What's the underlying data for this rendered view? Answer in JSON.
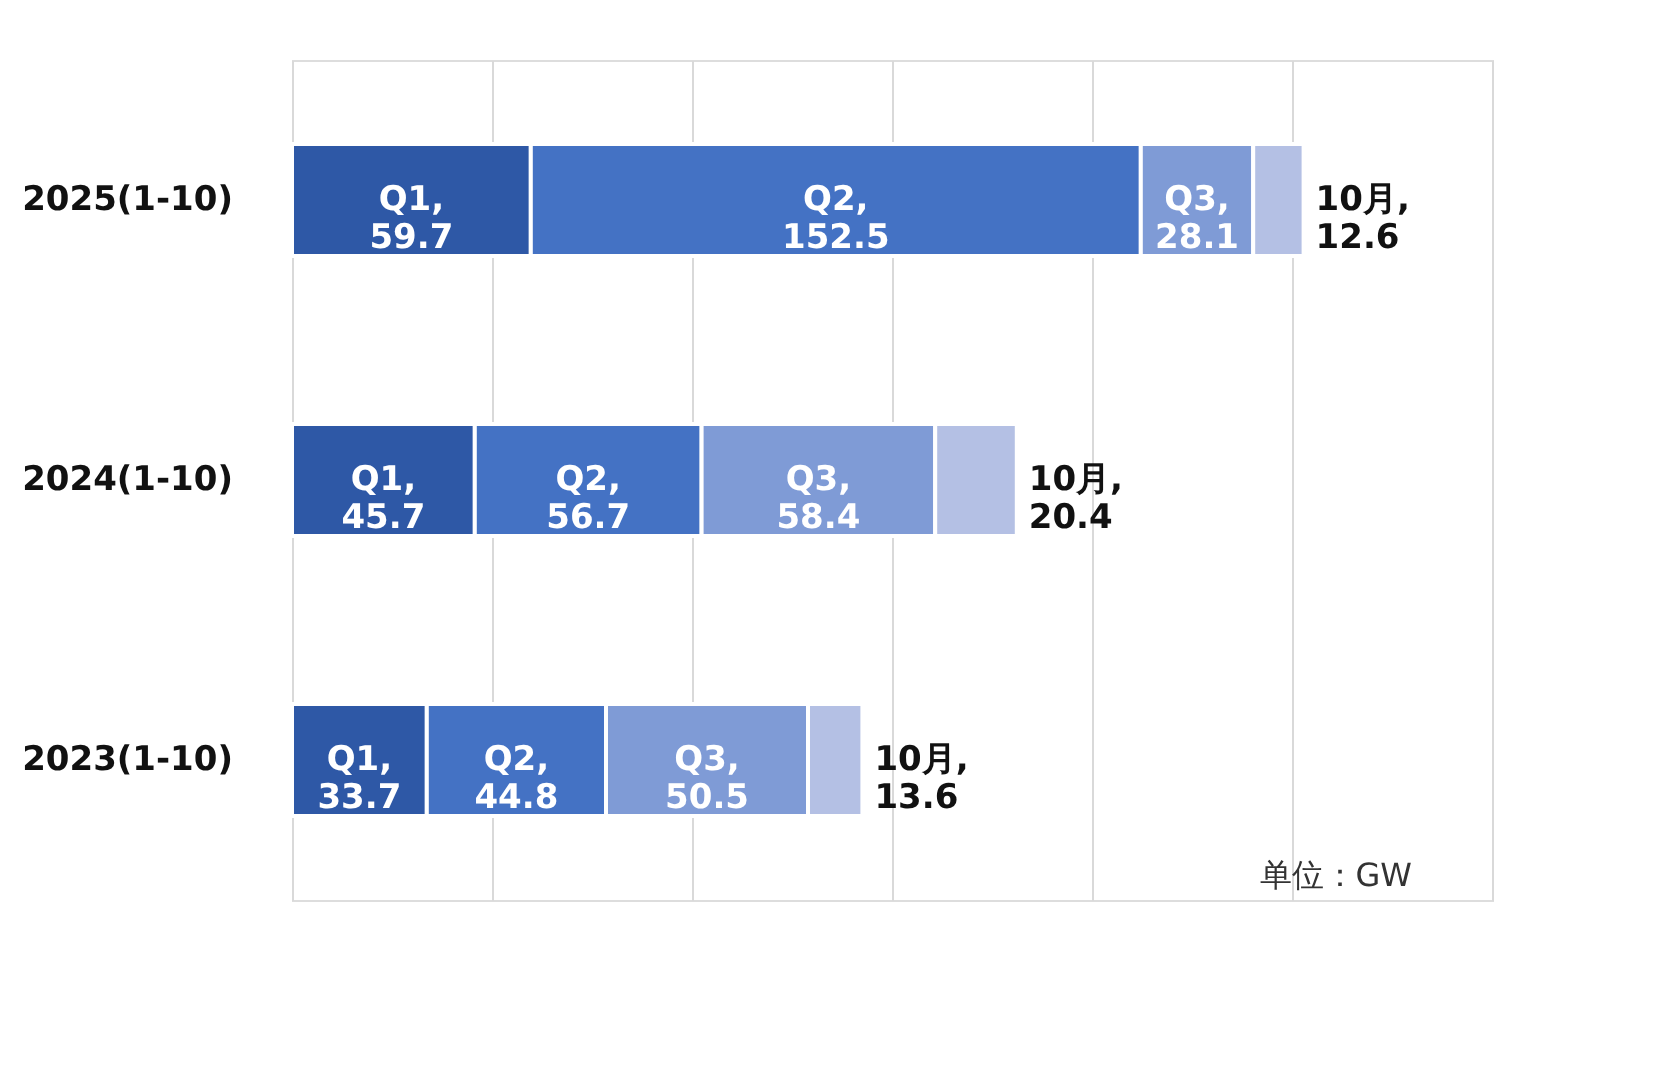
{
  "chart_data": {
    "type": "bar",
    "orientation": "horizontal",
    "stacked": true,
    "data_labels": true,
    "categories": [
      "2025(1-10)",
      "2024(1-10)",
      "2023(1-10)"
    ],
    "series": [
      {
        "name": "Q1,",
        "color": "#2e58a6",
        "values": [
          59.7,
          45.7,
          33.7
        ]
      },
      {
        "name": "Q2,",
        "color": "#4472c4",
        "values": [
          152.5,
          56.7,
          44.8
        ]
      },
      {
        "name": "Q3,",
        "color": "#7f9bd6",
        "values": [
          28.1,
          58.4,
          50.5
        ]
      },
      {
        "name": "10月,",
        "color": "#b4c0e4",
        "values": [
          12.6,
          20.4,
          13.6
        ]
      }
    ],
    "xlim": [
      0,
      300
    ],
    "xticks": [
      {
        "value": 0,
        "label": null
      },
      {
        "value": 50,
        "label": null
      },
      {
        "value": 100,
        "label": null
      },
      {
        "value": 150,
        "label": null
      },
      {
        "value": 200,
        "label": null
      },
      {
        "value": 250,
        "label": null
      },
      {
        "value": 300,
        "label": null
      }
    ],
    "tick_labels": "y",
    "grid": "x",
    "legend": false,
    "annotations": [
      "单位：GW"
    ]
  }
}
